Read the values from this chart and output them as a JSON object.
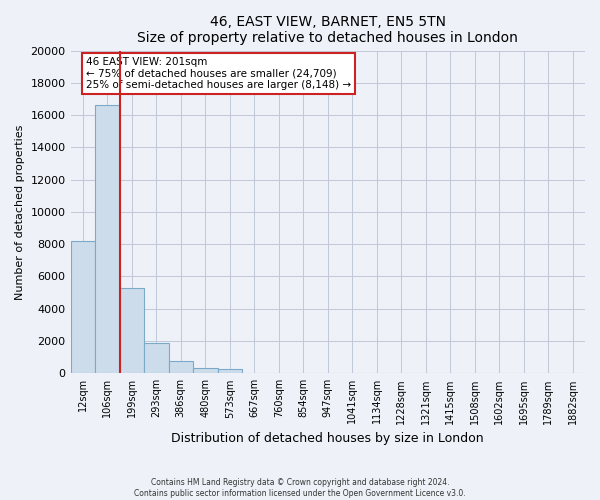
{
  "title": "46, EAST VIEW, BARNET, EN5 5TN",
  "subtitle": "Size of property relative to detached houses in London",
  "xlabel": "Distribution of detached houses by size in London",
  "ylabel": "Number of detached properties",
  "bar_labels": [
    "12sqm",
    "106sqm",
    "199sqm",
    "293sqm",
    "386sqm",
    "480sqm",
    "573sqm",
    "667sqm",
    "760sqm",
    "854sqm",
    "947sqm",
    "1041sqm",
    "1134sqm",
    "1228sqm",
    "1321sqm",
    "1415sqm",
    "1508sqm",
    "1602sqm",
    "1695sqm",
    "1789sqm",
    "1882sqm"
  ],
  "bar_values": [
    8200,
    16600,
    5300,
    1850,
    780,
    300,
    270,
    0,
    0,
    0,
    0,
    0,
    0,
    0,
    0,
    0,
    0,
    0,
    0,
    0,
    0
  ],
  "bar_color": "#cddceb",
  "bar_edge_color": "#7aaac8",
  "property_line_color": "#cc2222",
  "annotation_title": "46 EAST VIEW: 201sqm",
  "annotation_line1": "← 75% of detached houses are smaller (24,709)",
  "annotation_line2": "25% of semi-detached houses are larger (8,148) →",
  "annotation_box_color": "#ffffff",
  "annotation_box_edge": "#cc2222",
  "ylim": [
    0,
    20000
  ],
  "yticks": [
    0,
    2000,
    4000,
    6000,
    8000,
    10000,
    12000,
    14000,
    16000,
    18000,
    20000
  ],
  "footer1": "Contains HM Land Registry data © Crown copyright and database right 2024.",
  "footer2": "Contains public sector information licensed under the Open Government Licence v3.0.",
  "bg_color": "#eef2f8",
  "grid_color": "#c0c8d8"
}
